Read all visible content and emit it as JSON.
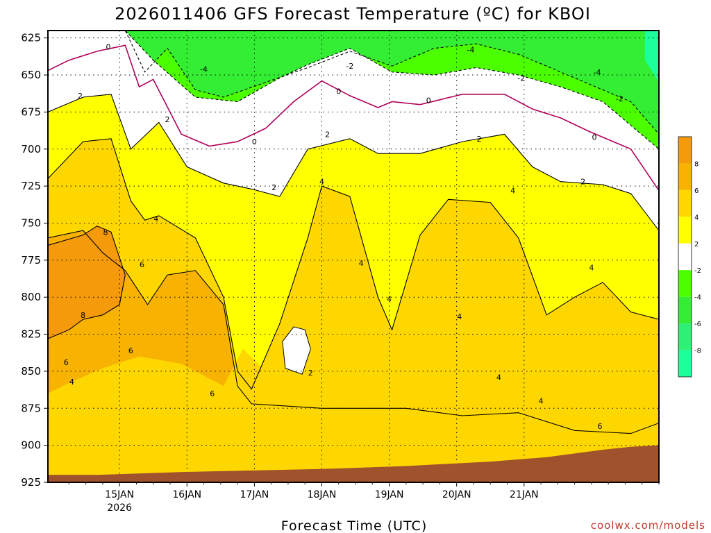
{
  "chart_data": {
    "type": "heatmap",
    "title": "2026011406 GFS Forecast Temperature (ºC) for KBOI",
    "xlabel": "Forecast Time (UTC)",
    "ylabel": "",
    "y_axis": {
      "ticks": [
        625,
        650,
        675,
        700,
        725,
        750,
        775,
        800,
        825,
        850,
        875,
        900,
        925
      ],
      "range_hpa": [
        925,
        620
      ],
      "inverted": true
    },
    "x_axis": {
      "range_hours": [
        -7.5,
        210
      ],
      "ticks": [
        {
          "hour": 18,
          "label": "15JAN",
          "sub": "2026"
        },
        {
          "hour": 42,
          "label": "16JAN",
          "sub": ""
        },
        {
          "hour": 66,
          "label": "17JAN",
          "sub": ""
        },
        {
          "hour": 90,
          "label": "18JAN",
          "sub": ""
        },
        {
          "hour": 114,
          "label": "19JAN",
          "sub": ""
        },
        {
          "hour": 138,
          "label": "20JAN",
          "sub": ""
        },
        {
          "hour": 162,
          "label": "21JAN",
          "sub": ""
        }
      ]
    },
    "grid": "dotted",
    "colorbar": {
      "placement": "right",
      "levels": [
        8,
        6,
        4,
        2,
        -2,
        -4,
        -6,
        -8
      ],
      "colors": {
        "c8plus": "#f59a0a",
        "c6_8": "#f8b202",
        "c4_6": "#ffd700",
        "c2_4": "#ffff00",
        "cm2_2": "#ffffff",
        "cm4_m2": "#4cff00",
        "cm6_m4": "#33ee33",
        "cm8_m6": "#2ef075",
        "cbelow": "#1cff9a"
      }
    },
    "contour_lines": [
      {
        "level": "-4",
        "style": "dashed",
        "hours": [
          -7.5,
          20,
          27,
          35,
          45,
          55,
          70,
          85,
          100,
          115,
          130,
          145,
          160,
          180,
          200,
          210
        ],
        "hpa": [
          620,
          620,
          648,
          632,
          660,
          665,
          655,
          645,
          634,
          644,
          632,
          629,
          636,
          652,
          668,
          690
        ]
      },
      {
        "level": "-2",
        "style": "dashed",
        "hours": [
          -7.5,
          20,
          30,
          45,
          60,
          75,
          85,
          100,
          115,
          130,
          145,
          160,
          175,
          190,
          210
        ],
        "hpa": [
          620,
          620,
          640,
          665,
          668,
          652,
          643,
          632,
          648,
          650,
          645,
          650,
          658,
          668,
          700
        ]
      },
      {
        "level": "0",
        "style": "solid",
        "hours": [
          -7.5,
          0,
          10,
          20,
          25,
          30,
          40,
          50,
          60,
          70,
          80,
          90,
          100,
          110,
          115,
          125,
          140,
          155,
          165,
          175,
          185,
          200,
          210
        ],
        "hpa": [
          647,
          640,
          634,
          630,
          658,
          653,
          690,
          698,
          695,
          686,
          668,
          654,
          664,
          672,
          668,
          670,
          663,
          663,
          673,
          679,
          688,
          700,
          728
        ]
      },
      {
        "level": "2",
        "style": "solid",
        "hours": [
          -7.5,
          5,
          15,
          22,
          32,
          42,
          55,
          65,
          75,
          85,
          100,
          110,
          125,
          140,
          155,
          165,
          175,
          190,
          200,
          210
        ],
        "hpa": [
          675,
          665,
          663,
          700,
          682,
          712,
          723,
          727,
          732,
          700,
          693,
          703,
          703,
          695,
          690,
          712,
          722,
          724,
          730,
          755
        ]
      },
      {
        "level": "4",
        "style": "solid",
        "hours": [
          -7.5,
          5,
          15,
          22,
          27,
          32,
          45,
          55,
          60,
          65,
          75,
          85,
          90,
          100,
          110,
          115,
          125,
          135,
          150,
          160,
          170,
          180,
          190,
          200,
          210
        ],
        "hpa": [
          720,
          695,
          693,
          735,
          748,
          745,
          760,
          800,
          850,
          862,
          818,
          760,
          725,
          732,
          800,
          822,
          758,
          734,
          736,
          760,
          812,
          800,
          790,
          810,
          815
        ]
      },
      {
        "level": "6",
        "style": "solid",
        "hours": [
          -7.5,
          5,
          12,
          20,
          28,
          35,
          45,
          55,
          60,
          65,
          90,
          120,
          140,
          160,
          180,
          200,
          210
        ],
        "hpa": [
          760,
          755,
          770,
          782,
          805,
          785,
          782,
          805,
          860,
          872,
          875,
          875,
          880,
          878,
          890,
          892,
          885
        ]
      },
      {
        "level": "8",
        "style": "solid",
        "hours": [
          -7.5,
          5,
          10,
          15,
          20,
          18,
          12,
          5,
          0,
          -7.5
        ],
        "hpa": [
          765,
          758,
          752,
          756,
          785,
          805,
          812,
          815,
          822,
          828
        ]
      }
    ],
    "contour_labels": [
      {
        "text": "0",
        "hour": 14,
        "hpa": 631
      },
      {
        "text": "-2",
        "hour": 100,
        "hpa": 644
      },
      {
        "text": "-4",
        "hour": 48,
        "hpa": 646
      },
      {
        "text": "-4",
        "hour": 143,
        "hpa": 633
      },
      {
        "text": "-2",
        "hour": 161,
        "hpa": 652
      },
      {
        "text": "-4",
        "hour": 188,
        "hpa": 648
      },
      {
        "text": "2",
        "hour": 4,
        "hpa": 664
      },
      {
        "text": "0",
        "hour": 96,
        "hpa": 661
      },
      {
        "text": "-2",
        "hour": 196,
        "hpa": 666
      },
      {
        "text": "0",
        "hour": 128,
        "hpa": 667
      },
      {
        "text": "2",
        "hour": 35,
        "hpa": 680
      },
      {
        "text": "0",
        "hour": 66,
        "hpa": 695
      },
      {
        "text": "2",
        "hour": 92,
        "hpa": 690
      },
      {
        "text": "2",
        "hour": 146,
        "hpa": 693
      },
      {
        "text": "0",
        "hour": 187,
        "hpa": 692
      },
      {
        "text": "2",
        "hour": 73,
        "hpa": 726
      },
      {
        "text": "4",
        "hour": 90,
        "hpa": 722
      },
      {
        "text": "2",
        "hour": 183,
        "hpa": 722
      },
      {
        "text": "4",
        "hour": 158,
        "hpa": 728
      },
      {
        "text": "4",
        "hour": 31,
        "hpa": 747
      },
      {
        "text": "8",
        "hour": 13,
        "hpa": 756
      },
      {
        "text": "6",
        "hour": 26,
        "hpa": 778
      },
      {
        "text": "4",
        "hour": 104,
        "hpa": 777
      },
      {
        "text": "4",
        "hour": 186,
        "hpa": 780
      },
      {
        "text": "4",
        "hour": 114,
        "hpa": 801
      },
      {
        "text": "8",
        "hour": 5,
        "hpa": 812
      },
      {
        "text": "4",
        "hour": 139,
        "hpa": 813
      },
      {
        "text": "6",
        "hour": -1,
        "hpa": 844
      },
      {
        "text": "6",
        "hour": 22,
        "hpa": 836
      },
      {
        "text": "2",
        "hour": 86,
        "hpa": 851
      },
      {
        "text": "4",
        "hour": 153,
        "hpa": 854
      },
      {
        "text": "4",
        "hour": 1,
        "hpa": 857
      },
      {
        "text": "6",
        "hour": 51,
        "hpa": 865
      },
      {
        "text": "4",
        "hour": 168,
        "hpa": 870
      },
      {
        "text": "6",
        "hour": 189,
        "hpa": 887
      }
    ],
    "terrain": {
      "color": "#a0522d",
      "hours": [
        -7.5,
        10,
        40,
        90,
        120,
        150,
        170,
        190,
        200,
        210
      ],
      "hpa": [
        920,
        920,
        918,
        916,
        914,
        911,
        908,
        903,
        901,
        900
      ]
    },
    "credit": "coolwx.com/models"
  }
}
